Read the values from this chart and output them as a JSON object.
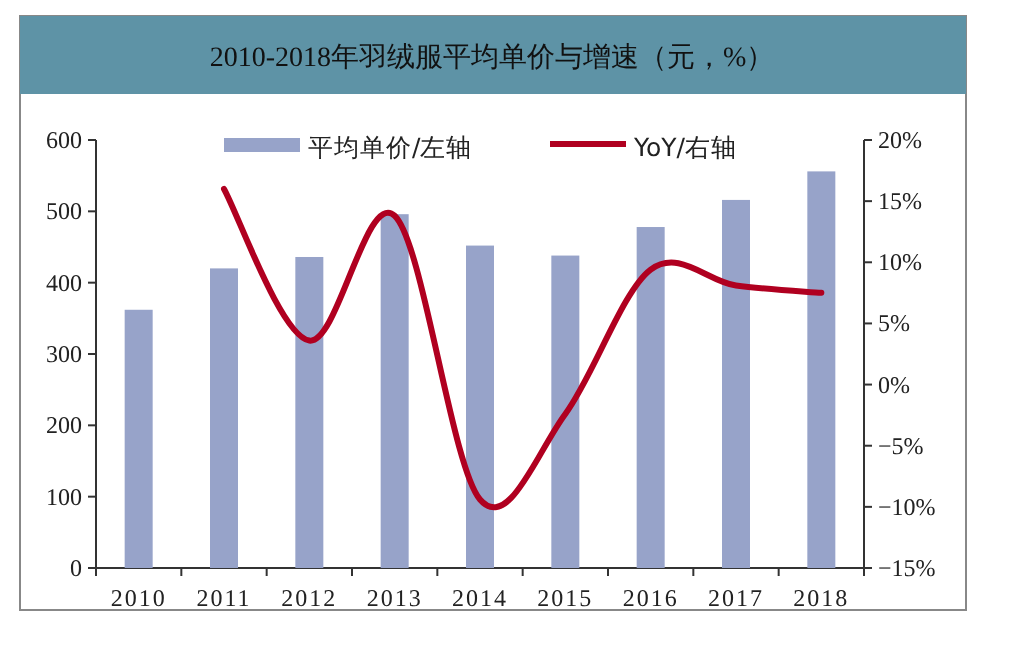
{
  "chart_data": {
    "type": "bar",
    "title": "2010-2018年羽绒服平均单价与增速（元，%）",
    "categories": [
      "2010",
      "2011",
      "2012",
      "2013",
      "2014",
      "2015",
      "2016",
      "2017",
      "2018"
    ],
    "series": [
      {
        "name": "平均单价/左轴",
        "color": "#97a3c9",
        "values": [
          362,
          420,
          436,
          496,
          452,
          438,
          478,
          516,
          556
        ]
      },
      {
        "name": "YoY/右轴",
        "type": "line",
        "axis": "y2",
        "color": "#b00020",
        "values": [
          null,
          16,
          3.6,
          13.8,
          -9.4,
          -2.4,
          9.4,
          8.1,
          7.5
        ]
      }
    ],
    "ylim": [
      0,
      600
    ],
    "yticks": [
      0,
      100,
      200,
      300,
      400,
      500,
      600
    ],
    "y2lim": [
      -15,
      20
    ],
    "y2ticks": [
      {
        "value": -15,
        "label": "−15%"
      },
      {
        "value": -10,
        "label": "−10%"
      },
      {
        "value": -5,
        "label": "−5%"
      },
      {
        "value": 0,
        "label": "0%"
      },
      {
        "value": 5,
        "label": "5%"
      },
      {
        "value": 10,
        "label": "10%"
      },
      {
        "value": 15,
        "label": "15%"
      },
      {
        "value": 20,
        "label": "20%"
      }
    ],
    "legend": "top",
    "grid": false,
    "marker": "none"
  }
}
